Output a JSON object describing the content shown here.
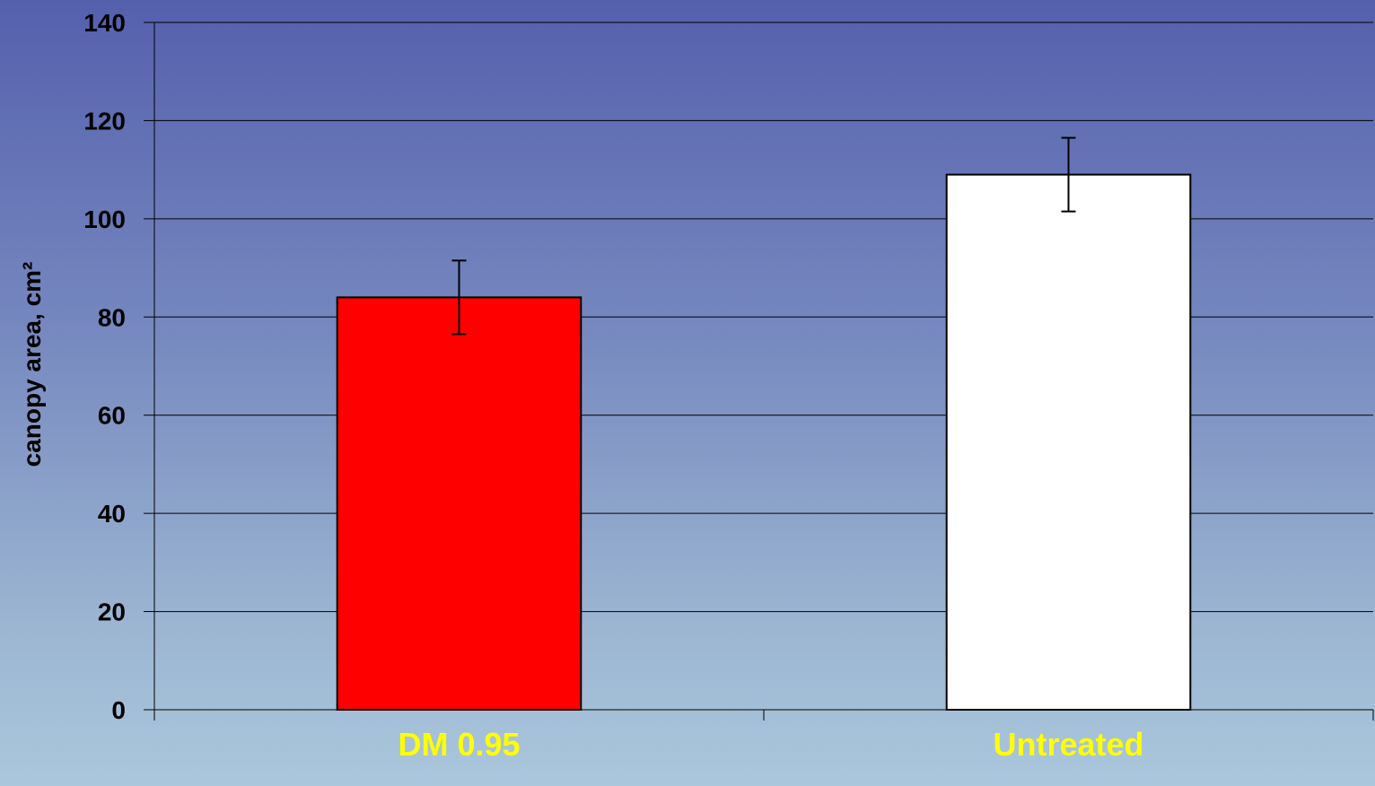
{
  "chart_data": {
    "type": "bar",
    "title": "",
    "xlabel": "",
    "ylabel": "canopy area, cm²",
    "ylim": [
      0,
      140
    ],
    "yticks": [
      0,
      20,
      40,
      60,
      80,
      100,
      120,
      140
    ],
    "categories": [
      "DM 0.95",
      "Untreated"
    ],
    "values": [
      84,
      109
    ],
    "errors": [
      7.5,
      7.5
    ],
    "bar_colors": [
      "#ff0000",
      "#ffffff"
    ],
    "category_label_color": "#ffff00",
    "grid": true,
    "legend": "none"
  }
}
